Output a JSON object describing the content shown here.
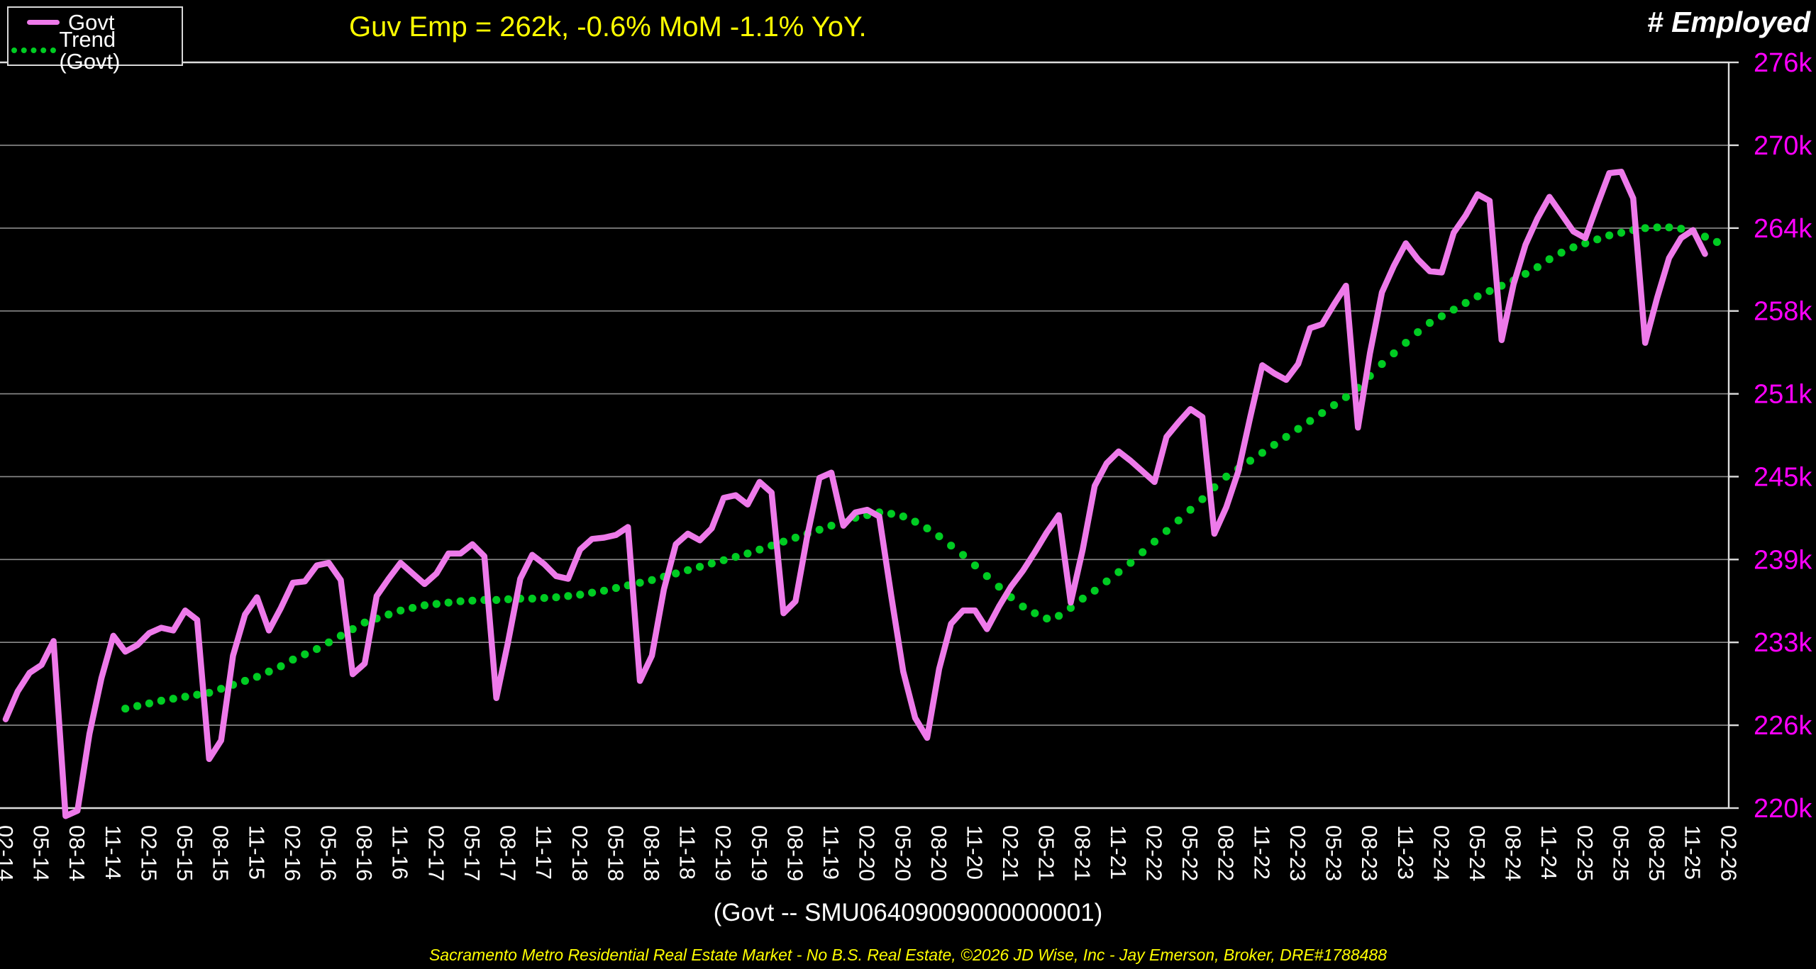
{
  "header": {
    "title": "Guv Emp = 262k, -0.6% MoM -1.1% YoY.",
    "right_label": "# Employed"
  },
  "legend": {
    "items": [
      {
        "label": "Govt",
        "style": "solid",
        "color": "#ee7aea"
      },
      {
        "label": "Trend (Govt)",
        "style": "dotted",
        "color": "#00cc22"
      }
    ]
  },
  "footer": {
    "series_id_label": "(Govt -- SMU06409009000000001)",
    "attribution": "Sacramento Metro Residential Real Estate Market - No B.S. Real Estate, ©2026 JD Wise, Inc - Jay Emerson, Broker, DRE#1788488"
  },
  "colors": {
    "background": "#000000",
    "govt_line": "#ee7aea",
    "trend_dots": "#00cc22",
    "y_axis_labels": "#ff00ff",
    "x_axis_labels": "#ffffff",
    "gridline": "#8c8c8c",
    "border": "#dddddd",
    "title": "#ffff00",
    "text": "#ffffff"
  },
  "chart_data": {
    "type": "line",
    "title": "Guv Emp = 262k, -0.6% MoM -1.1% YoY.",
    "ylabel": "# Employed",
    "xlabel": "",
    "grid": true,
    "legend_position": "top-left",
    "x_start_month": "2014-02",
    "x_frequency": "monthly",
    "x_tick_step_months": 3,
    "x_tick_labels": [
      "02-14",
      "05-14",
      "08-14",
      "11-14",
      "02-15",
      "05-15",
      "08-15",
      "11-15",
      "02-16",
      "05-16",
      "08-16",
      "11-16",
      "02-17",
      "05-17",
      "08-17",
      "11-17",
      "02-18",
      "05-18",
      "08-18",
      "11-18",
      "02-19",
      "05-19",
      "08-19",
      "11-19",
      "02-20",
      "05-20",
      "08-20",
      "11-20",
      "02-21",
      "05-21",
      "08-21",
      "11-21",
      "02-22",
      "05-22",
      "08-22",
      "11-22",
      "02-23",
      "05-23",
      "08-23",
      "11-23",
      "02-24",
      "05-24",
      "08-24",
      "11-24",
      "02-25",
      "05-25",
      "08-25",
      "11-25",
      "02-26"
    ],
    "y_tick_labels": [
      "276k",
      "270k",
      "264k",
      "258k",
      "251k",
      "245k",
      "239k",
      "233k",
      "226k",
      "220k"
    ],
    "y_tick_values": [
      276.25,
      270,
      263.75,
      257.5,
      251.25,
      245,
      238.75,
      232.5,
      226.25,
      220
    ],
    "ylim": [
      220,
      276.25
    ],
    "units": "thousands employed",
    "series": [
      {
        "name": "Govt",
        "color": "#ee7aea",
        "style": "solid",
        "start_index": 0,
        "values": [
          226.7,
          228.8,
          230.2,
          230.8,
          232.6,
          219.4,
          219.8,
          225.6,
          229.8,
          233.0,
          231.8,
          232.3,
          233.2,
          233.6,
          233.4,
          234.9,
          234.2,
          223.7,
          225.1,
          231.5,
          234.6,
          235.9,
          233.4,
          235.1,
          237.0,
          237.1,
          238.3,
          238.5,
          237.2,
          230.1,
          230.9,
          236.0,
          237.3,
          238.5,
          237.7,
          236.9,
          237.7,
          239.2,
          239.2,
          239.9,
          239.0,
          228.3,
          232.6,
          237.3,
          239.1,
          238.4,
          237.5,
          237.3,
          239.5,
          240.3,
          240.4,
          240.6,
          241.2,
          229.6,
          231.5,
          236.5,
          239.9,
          240.7,
          240.2,
          241.1,
          243.4,
          243.6,
          242.9,
          244.6,
          243.8,
          234.7,
          235.6,
          240.6,
          244.9,
          245.3,
          241.3,
          242.3,
          242.5,
          242.0,
          236.0,
          230.3,
          226.8,
          225.3,
          230.5,
          233.9,
          234.9,
          234.9,
          233.5,
          235.2,
          236.7,
          237.9,
          239.3,
          240.8,
          242.1,
          235.5,
          239.5,
          244.3,
          246.0,
          246.9,
          246.2,
          245.4,
          244.6,
          248.0,
          249.1,
          250.1,
          249.5,
          240.7,
          242.7,
          245.4,
          249.5,
          253.4,
          252.8,
          252.3,
          253.5,
          256.2,
          256.5,
          258.0,
          259.4,
          248.7,
          254.3,
          258.9,
          260.9,
          262.6,
          261.4,
          260.5,
          260.4,
          263.4,
          264.7,
          266.3,
          265.8,
          255.3,
          259.5,
          262.5,
          264.5,
          266.1,
          264.8,
          263.5,
          263.0,
          265.5,
          267.9,
          268.0,
          266.0,
          255.1,
          258.5,
          261.5,
          263.0,
          263.6,
          261.8
        ]
      },
      {
        "name": "Trend (Govt)",
        "color": "#00cc22",
        "style": "dotted",
        "start_index": 10,
        "values": [
          227.5,
          227.7,
          227.9,
          228.1,
          228.25,
          228.4,
          228.55,
          228.7,
          229.0,
          229.3,
          229.6,
          229.9,
          230.3,
          230.7,
          231.2,
          231.6,
          232.0,
          232.5,
          233.0,
          233.5,
          234.0,
          234.3,
          234.6,
          234.9,
          235.1,
          235.3,
          235.4,
          235.5,
          235.6,
          235.65,
          235.7,
          235.7,
          235.75,
          235.8,
          235.8,
          235.85,
          235.9,
          236.0,
          236.1,
          236.25,
          236.4,
          236.6,
          236.8,
          237.0,
          237.2,
          237.45,
          237.7,
          237.95,
          238.2,
          238.45,
          238.7,
          238.95,
          239.2,
          239.5,
          239.8,
          240.1,
          240.4,
          240.7,
          241.0,
          241.3,
          241.6,
          241.9,
          242.1,
          242.3,
          242.2,
          242.0,
          241.6,
          241.1,
          240.5,
          239.8,
          239.1,
          238.3,
          237.5,
          236.7,
          235.9,
          235.2,
          234.7,
          234.3,
          234.5,
          235.1,
          235.8,
          236.4,
          237.1,
          237.8,
          238.5,
          239.3,
          240.1,
          240.9,
          241.7,
          242.5,
          243.3,
          244.2,
          245.0,
          245.6,
          246.2,
          246.8,
          247.4,
          248.0,
          248.6,
          249.2,
          249.8,
          250.4,
          251.0,
          251.7,
          252.6,
          253.5,
          254.3,
          255.1,
          255.9,
          256.6,
          257.1,
          257.6,
          258.1,
          258.6,
          259.0,
          259.4,
          259.8,
          260.3,
          260.8,
          261.4,
          261.9,
          262.3,
          262.6,
          262.9,
          263.2,
          263.4,
          263.6,
          263.75,
          263.8,
          263.8,
          263.7,
          263.5,
          263.1,
          262.7
        ]
      }
    ]
  }
}
